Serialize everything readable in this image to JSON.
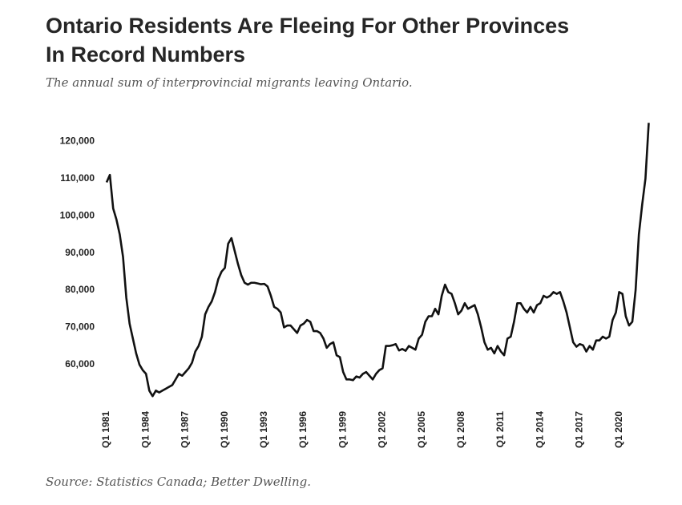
{
  "chart_data": {
    "type": "line",
    "title": "Ontario Residents Are Fleeing For Other Provinces\nIn Record Numbers",
    "subtitle": "The annual sum of interprovincial migrants leaving Ontario.",
    "source": "Source: Statistics Canada; Better Dwelling.",
    "color": "#111111",
    "grid": false,
    "categories": [
      "Q1 1981",
      null,
      null,
      null,
      null,
      null,
      null,
      null,
      null,
      null,
      null,
      null,
      "Q1 1984",
      null,
      null,
      null,
      null,
      null,
      null,
      null,
      null,
      null,
      null,
      null,
      "Q1 1987",
      null,
      null,
      null,
      null,
      null,
      null,
      null,
      null,
      null,
      null,
      null,
      "Q1 1990",
      null,
      null,
      null,
      null,
      null,
      null,
      null,
      null,
      null,
      null,
      null,
      "Q1 1993",
      null,
      null,
      null,
      null,
      null,
      null,
      null,
      null,
      null,
      null,
      null,
      "Q1 1996",
      null,
      null,
      null,
      null,
      null,
      null,
      null,
      null,
      null,
      null,
      null,
      "Q1 1999",
      null,
      null,
      null,
      null,
      null,
      null,
      null,
      null,
      null,
      null,
      null,
      "Q1 2002",
      null,
      null,
      null,
      null,
      null,
      null,
      null,
      null,
      null,
      null,
      null,
      "Q1 2005",
      null,
      null,
      null,
      null,
      null,
      null,
      null,
      null,
      null,
      null,
      null,
      "Q1 2008",
      null,
      null,
      null,
      null,
      null,
      null,
      null,
      null,
      null,
      null,
      null,
      "Q1 2011",
      null,
      null,
      null,
      null,
      null,
      null,
      null,
      null,
      null,
      null,
      null,
      "Q1 2014",
      null,
      null,
      null,
      null,
      null,
      null,
      null,
      null,
      null,
      null,
      null,
      "Q1 2017",
      null,
      null,
      null,
      null,
      null,
      null,
      null,
      null,
      null,
      null,
      null,
      "Q1 2020",
      null,
      null,
      null,
      null,
      null,
      null,
      null,
      null,
      null
    ],
    "values": [
      109000,
      111000,
      102000,
      99000,
      95000,
      89000,
      78000,
      71000,
      67000,
      63000,
      60000,
      58500,
      57500,
      53000,
      51500,
      53000,
      52500,
      53000,
      53500,
      54000,
      54500,
      56000,
      57500,
      57000,
      58000,
      59000,
      60500,
      63500,
      65000,
      67500,
      73500,
      75500,
      77000,
      79500,
      83000,
      85000,
      86000,
      92500,
      94000,
      90500,
      87000,
      84000,
      82000,
      81500,
      82000,
      82000,
      81800,
      81600,
      81700,
      81000,
      78500,
      75500,
      75000,
      74000,
      70000,
      70500,
      70500,
      69500,
      68500,
      70500,
      71000,
      72000,
      71500,
      69000,
      69000,
      68500,
      67000,
      64500,
      65500,
      66000,
      62500,
      62000,
      58000,
      56000,
      56000,
      55800,
      56800,
      56500,
      57500,
      58000,
      57000,
      56000,
      57500,
      58500,
      59000,
      65000,
      65000,
      65200,
      65500,
      63800,
      64200,
      63700,
      65000,
      64500,
      64000,
      67000,
      68000,
      71500,
      73000,
      73000,
      75000,
      73500,
      78500,
      81500,
      79500,
      79000,
      76500,
      73500,
      74500,
      76500,
      75000,
      75500,
      76000,
      73500,
      70000,
      66000,
      64000,
      64500,
      63000,
      65000,
      63500,
      62500,
      67000,
      67500,
      71500,
      76500,
      76500,
      75000,
      74000,
      75500,
      74000,
      76000,
      76500,
      78500,
      78000,
      78500,
      79500,
      79000,
      79500,
      77000,
      74000,
      70000,
      66000,
      64800,
      65500,
      65200,
      63500,
      65000,
      64000,
      66500,
      66500,
      67500,
      67000,
      67500,
      72000,
      74000,
      79500,
      79000,
      73000,
      70500,
      71500,
      80000,
      95000,
      103000,
      110000,
      125000
    ],
    "ylim": [
      50000,
      126000
    ],
    "yticks": [
      {
        "value": 60000,
        "label": "60,000"
      },
      {
        "value": 70000,
        "label": "70,000"
      },
      {
        "value": 80000,
        "label": "80,000"
      },
      {
        "value": 90000,
        "label": "90,000"
      },
      {
        "value": 100000,
        "label": "100,000"
      },
      {
        "value": 110000,
        "label": "110,000"
      },
      {
        "value": 120000,
        "label": "120,000"
      }
    ]
  }
}
